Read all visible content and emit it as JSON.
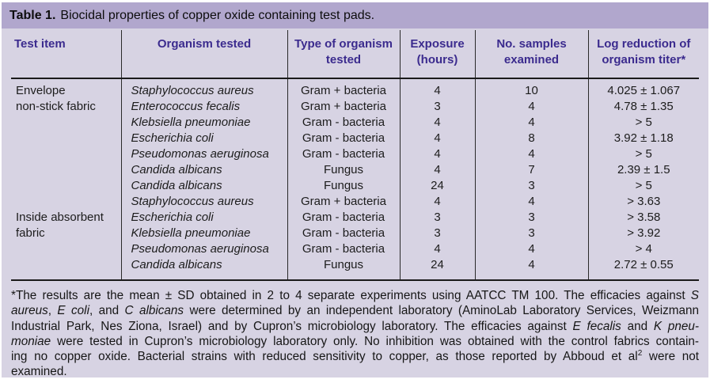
{
  "table": {
    "title_label": "Table 1.",
    "title_text": "Biocidal properties of copper oxide containing test pads.",
    "colors": {
      "title_bar": "#b1a7cd",
      "panel_background": "#d7d3e3",
      "header_text": "#3b2b8e",
      "body_text": "#1c1c1c",
      "rule_line": "#1a1a1a"
    },
    "columns": [
      {
        "label": "Test item"
      },
      {
        "label": "Organism tested"
      },
      {
        "label": "Type of organism tested"
      },
      {
        "label": "Exposure (hours)"
      },
      {
        "label": "No. samples examined"
      },
      {
        "label": "Log reduction of organism titer*"
      }
    ],
    "rows": [
      {
        "test_item": "Envelope",
        "organism": "Staphylococcus aureus",
        "type": "Gram + bacteria",
        "exposure": "4",
        "samples": "10",
        "log_reduction": "4.025 ± 1.067"
      },
      {
        "test_item": "non-stick fabric",
        "organism": "Enterococcus fecalis",
        "type": "Gram + bacteria",
        "exposure": "3",
        "samples": "4",
        "log_reduction": "4.78 ± 1.35"
      },
      {
        "test_item": "",
        "organism": "Klebsiella pneumoniae",
        "type": "Gram - bacteria",
        "exposure": "4",
        "samples": "4",
        "log_reduction": "> 5"
      },
      {
        "test_item": "",
        "organism": "Escherichia coli",
        "type": "Gram - bacteria",
        "exposure": "4",
        "samples": "8",
        "log_reduction": "3.92 ± 1.18"
      },
      {
        "test_item": "",
        "organism": "Pseudomonas aeruginosa",
        "type": "Gram - bacteria",
        "exposure": "4",
        "samples": "4",
        "log_reduction": "> 5"
      },
      {
        "test_item": "",
        "organism": "Candida albicans",
        "type": "Fungus",
        "exposure": "4",
        "samples": "7",
        "log_reduction": "2.39 ± 1.5"
      },
      {
        "test_item": "",
        "organism": "Candida albicans",
        "type": "Fungus",
        "exposure": "24",
        "samples": "3",
        "log_reduction": "> 5"
      },
      {
        "test_item": "",
        "organism": "Staphylococcus aureus",
        "type": "Gram + bacteria",
        "exposure": "4",
        "samples": "4",
        "log_reduction": "> 3.63"
      },
      {
        "test_item": "Inside absorbent",
        "organism": "Escherichia coli",
        "type": "Gram - bacteria",
        "exposure": "3",
        "samples": "3",
        "log_reduction": "> 3.58"
      },
      {
        "test_item": "fabric",
        "organism": "Klebsiella pneumoniae",
        "type": "Gram - bacteria",
        "exposure": "3",
        "samples": "3",
        "log_reduction": "> 3.92"
      },
      {
        "test_item": "",
        "organism": "Pseudomonas aeruginosa",
        "type": "Gram - bacteria",
        "exposure": "4",
        "samples": "4",
        "log_reduction": "> 4"
      },
      {
        "test_item": "",
        "organism": "Candida albicans",
        "type": "Fungus",
        "exposure": "24",
        "samples": "4",
        "log_reduction": "2.72 ± 0.55"
      }
    ],
    "footnote_lines": [
      [
        {
          "t": "*The results are the mean ± SD obtained in 2 to 4 separate experiments using AATCC TM 100. The efficacies against "
        },
        {
          "t": "S",
          "i": true
        }
      ],
      [
        {
          "t": "aureus",
          "i": true
        },
        {
          "t": ", "
        },
        {
          "t": "E coli",
          "i": true
        },
        {
          "t": ", and "
        },
        {
          "t": "C albicans",
          "i": true
        },
        {
          "t": " were determined by an independent laboratory (AminoLab Laboratory Services, Weizmann"
        }
      ],
      [
        {
          "t": "Industrial Park, Nes Ziona, Israel) and by Cupron’s microbiology laboratory. The efficacies against "
        },
        {
          "t": "E fecalis",
          "i": true
        },
        {
          "t": " and "
        },
        {
          "t": "K pneu-",
          "i": true
        }
      ],
      [
        {
          "t": "moniae",
          "i": true
        },
        {
          "t": " were tested in Cupron’s microbiology laboratory only. No inhibition was obtained with the control fabrics contain-"
        }
      ],
      [
        {
          "t": "ing no copper oxide. Bacterial strains with reduced sensitivity to copper, as those reported by Abboud et al"
        },
        {
          "t": "2",
          "sup": true
        },
        {
          "t": " were not"
        }
      ],
      [
        {
          "t": "examined."
        }
      ]
    ]
  }
}
